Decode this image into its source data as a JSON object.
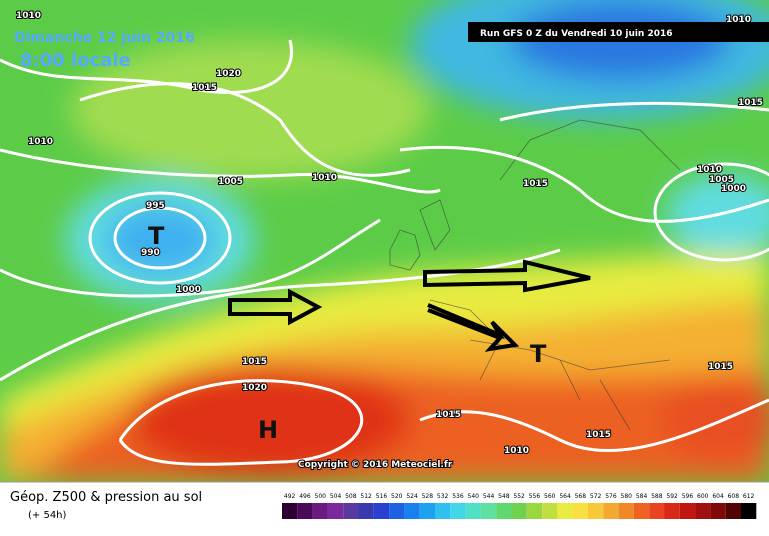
{
  "header": {
    "date": "Dimanche 12 juin 2016",
    "time": "8:00 locale",
    "run": "Run GFS 0 Z du Vendredi 10 juin 2016"
  },
  "map": {
    "labels": [
      "1010",
      "1020",
      "1015",
      "1010",
      "1005",
      "1010",
      "995",
      "T",
      "990",
      "1000",
      "1015",
      "1015",
      "1010",
      "1005",
      "1000",
      "1010",
      "1015",
      "1020",
      "H",
      "1015",
      "1015",
      "1010",
      "T",
      "1015"
    ],
    "copyright": "Copyright © 2016 Meteociel.fr"
  },
  "legend": {
    "title": "Géop. Z500 & pression au sol",
    "subtitle": "(+ 54h)",
    "scale": [
      492,
      496,
      500,
      504,
      508,
      512,
      516,
      520,
      524,
      528,
      532,
      536,
      540,
      544,
      548,
      552,
      556,
      560,
      564,
      568,
      572,
      576,
      580,
      584,
      588,
      592,
      596,
      600,
      604,
      608,
      612
    ],
    "colors": [
      "#2c0030",
      "#4a0a5a",
      "#6a1a80",
      "#7a2a9a",
      "#5a3aa0",
      "#3a3ab0",
      "#2a40d0",
      "#1e60e6",
      "#1a80f0",
      "#20a0f0",
      "#30c0f0",
      "#40d8e8",
      "#50e0c8",
      "#60e0a0",
      "#60d870",
      "#70d050",
      "#9ad840",
      "#c0e040",
      "#e8ec40",
      "#f8e040",
      "#f8c838",
      "#f4a830",
      "#f08828",
      "#ec6420",
      "#e84420",
      "#d82818",
      "#c01810",
      "#a01010",
      "#800808",
      "#500404",
      "#000000"
    ]
  }
}
